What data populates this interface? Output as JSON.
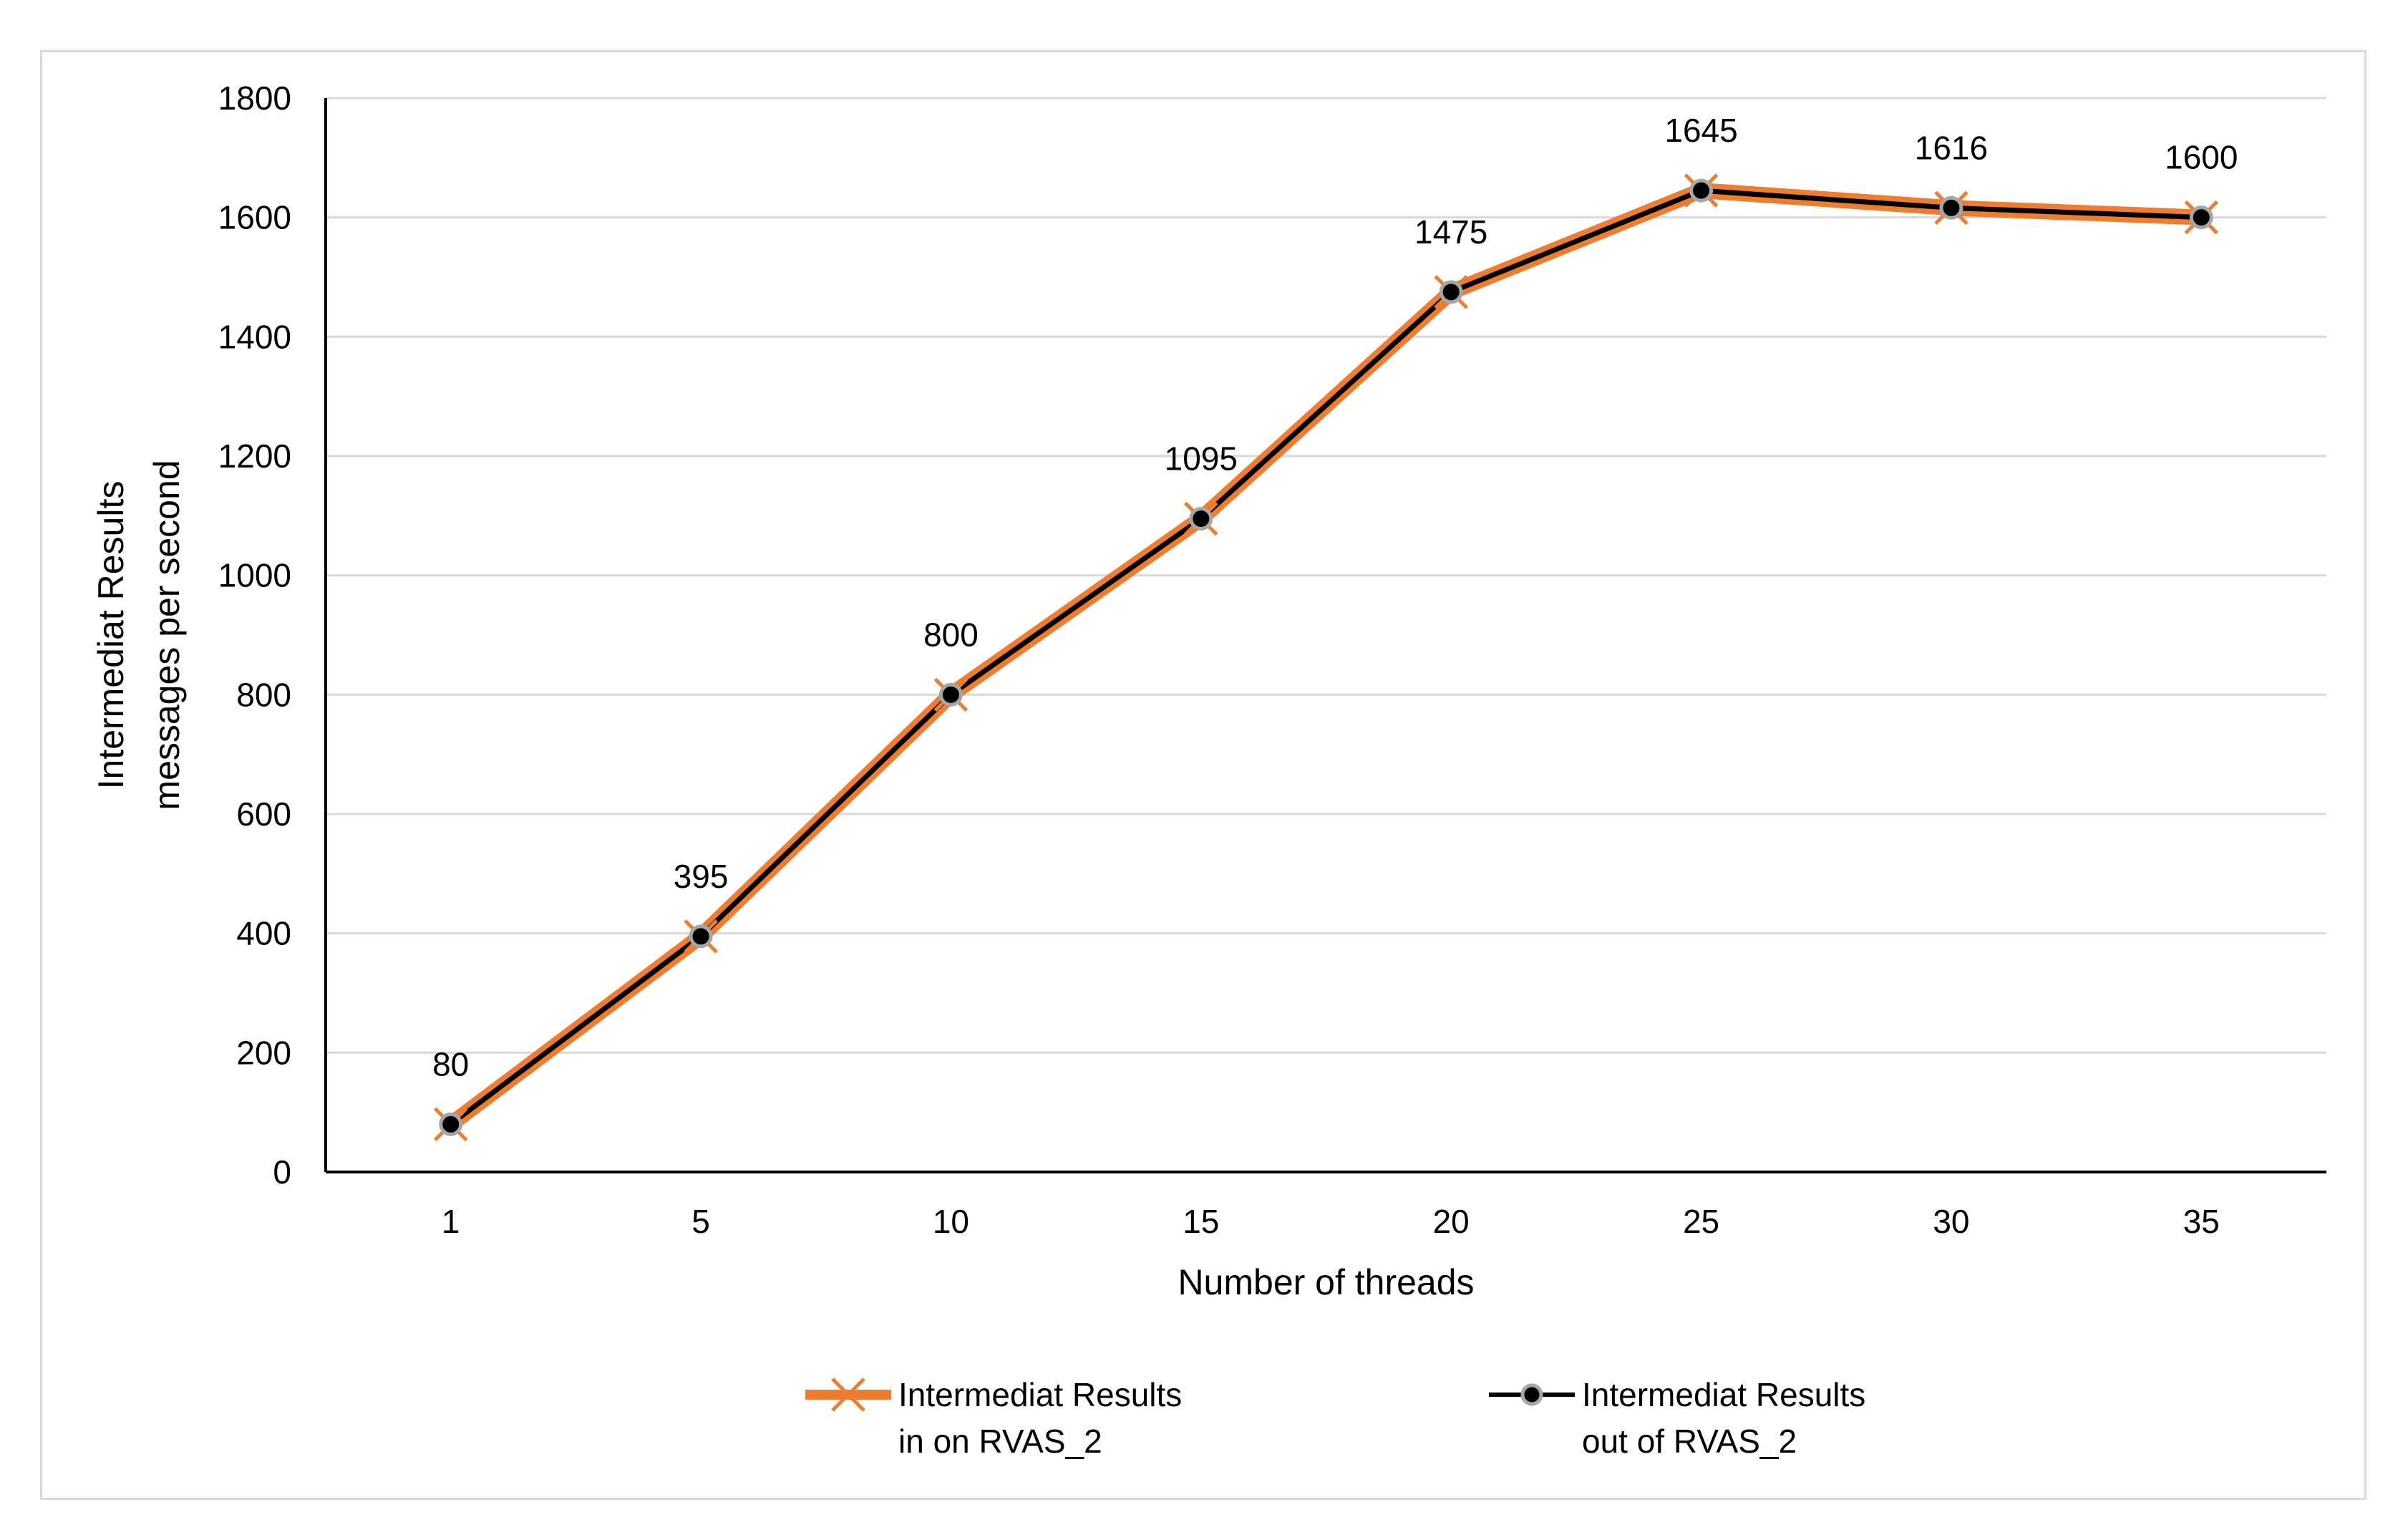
{
  "chart_data": {
    "type": "line",
    "categories": [
      "1",
      "5",
      "10",
      "15",
      "20",
      "25",
      "30",
      "35"
    ],
    "series": [
      {
        "name_lines": [
          "Intermediat Results",
          "in on RVAS_2"
        ],
        "values": [
          80,
          395,
          800,
          1095,
          1475,
          1645,
          1616,
          1600
        ],
        "color": "#ed7d31",
        "marker": "x"
      },
      {
        "name_lines": [
          "Intermediat Results",
          "out of RVAS_2"
        ],
        "values": [
          80,
          395,
          800,
          1095,
          1475,
          1645,
          1616,
          1600
        ],
        "color": "#000000",
        "marker": "circle"
      }
    ],
    "data_labels": [
      "80",
      "395",
      "800",
      "1095",
      "1475",
      "1645",
      "1616",
      "1600"
    ],
    "xlabel": "Number of threads",
    "ylabel_lines": [
      "Intermediat Results",
      "messages per second"
    ],
    "ylim": [
      0,
      1800
    ],
    "yticks": [
      0,
      200,
      400,
      600,
      800,
      1000,
      1200,
      1400,
      1600,
      1800
    ],
    "grid": true,
    "legend_position": "bottom"
  },
  "colors": {
    "grid": "#d9d9d9",
    "axis": "#000000",
    "marker_edge": "#a6a6a6"
  }
}
